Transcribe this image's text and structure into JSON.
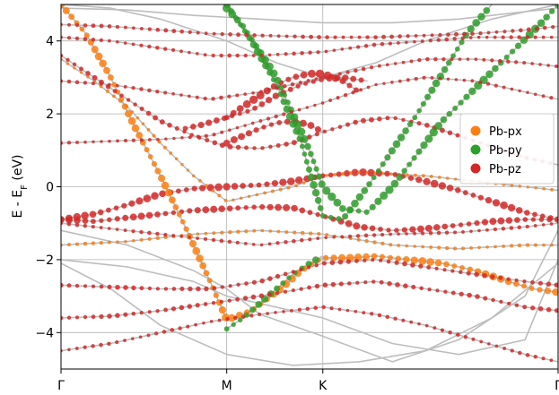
{
  "chart_data": {
    "type": "scatter",
    "title": "",
    "ylabel": "E - E",
    "ylabel_sub": "F",
    "ylabel_tail": " (eV)",
    "ylim": [
      -5.0,
      5.0
    ],
    "yticks": [
      -4,
      -2,
      0,
      2,
      4
    ],
    "ytick_labels": [
      "−4",
      "−2",
      "0",
      "2",
      "4"
    ],
    "xlim": [
      0,
      3
    ],
    "xticks": [
      0,
      1,
      1.58,
      3
    ],
    "xtick_labels": [
      "Γ",
      "M",
      "K",
      "Γ"
    ],
    "grid": true,
    "legend_position": "center-right",
    "colors": {
      "band": "#bdbdbd",
      "px": "#ff7f0e",
      "py": "#2ca02c",
      "pz": "#d62728"
    },
    "series": [
      {
        "name": "Pb-px",
        "color": "#ff7f0e",
        "orbital": "px"
      },
      {
        "name": "Pb-py",
        "color": "#2ca02c",
        "orbital": "py"
      },
      {
        "name": "Pb-pz",
        "color": "#d62728",
        "orbital": "pz"
      }
    ],
    "bands": [
      {
        "x": [
          0,
          0.2,
          0.4,
          0.6,
          0.8,
          1.0,
          1.2,
          1.4,
          1.58,
          1.8,
          2.0,
          2.2,
          2.4,
          2.6,
          2.8,
          3.0
        ],
        "y": [
          -0.9,
          -0.75,
          -0.5,
          -0.2,
          -0.05,
          0.0,
          0.05,
          0.15,
          0.3,
          0.4,
          0.35,
          0.15,
          -0.1,
          -0.4,
          -0.7,
          -0.9
        ],
        "orbital": "pz",
        "weight": 0.9
      },
      {
        "x": [
          0,
          0.2,
          0.4,
          0.6,
          0.8,
          1.0,
          1.2,
          1.4,
          1.58,
          1.8,
          2.0,
          2.2,
          2.4,
          2.6,
          2.8,
          3.0
        ],
        "y": [
          -0.9,
          -0.95,
          -0.85,
          -0.75,
          -0.65,
          -0.6,
          -0.55,
          -0.58,
          -0.8,
          -1.1,
          -1.2,
          -1.15,
          -1.05,
          -0.95,
          -0.9,
          -0.9
        ],
        "orbital": "pz",
        "weight": 0.8
      },
      {
        "x": [
          0,
          0.15,
          0.3,
          0.45,
          0.6,
          0.75,
          0.9,
          1.0,
          1.15,
          1.3,
          1.45,
          1.58,
          1.75,
          1.9,
          2.1,
          2.3,
          2.5,
          2.7,
          2.85,
          3.0
        ],
        "y": [
          5.0,
          4.2,
          3.0,
          1.6,
          0.3,
          -1.1,
          -2.6,
          -3.65,
          -3.4,
          -2.9,
          -2.3,
          -1.95,
          -1.95,
          -1.9,
          -2.0,
          -2.1,
          -2.3,
          -2.6,
          -2.8,
          -2.9
        ],
        "orbital": "px",
        "weight": 0.9
      },
      {
        "x": [
          0,
          0.2,
          0.4,
          0.6,
          0.8,
          1.0,
          1.2,
          1.4,
          1.58,
          1.8,
          2.0,
          2.2,
          2.4,
          2.6,
          2.8,
          3.0
        ],
        "y": [
          3.5,
          2.9,
          2.2,
          1.2,
          0.3,
          -0.4,
          -0.2,
          0.0,
          0.3,
          0.4,
          0.35,
          0.3,
          0.2,
          0.1,
          0.0,
          -0.1
        ],
        "orbital": "px",
        "weight": 0.2
      },
      {
        "x": [
          0,
          0.2,
          0.4,
          0.6,
          0.8,
          1.0,
          1.2,
          1.4,
          1.58,
          1.8,
          2.0,
          2.2,
          2.4,
          2.6,
          2.8,
          3.0
        ],
        "y": [
          3.6,
          3.0,
          2.4,
          1.8,
          1.4,
          1.1,
          1.05,
          1.2,
          1.5,
          1.8,
          1.9,
          1.7,
          1.4,
          1.1,
          0.8,
          0.6
        ],
        "orbital": "pz",
        "weight": 0.5
      },
      {
        "x": [
          1.0,
          1.1,
          1.2,
          1.3,
          1.4,
          1.5,
          1.58,
          1.7,
          1.8
        ],
        "y": [
          1.9,
          2.2,
          2.5,
          2.8,
          3.0,
          3.1,
          3.1,
          2.9,
          2.6
        ],
        "orbital": "pz",
        "weight": 1.0
      },
      {
        "x": [
          0.75,
          0.85,
          1.0,
          1.15,
          1.3,
          1.45,
          1.58,
          1.7,
          1.85
        ],
        "y": [
          1.6,
          1.7,
          1.9,
          2.1,
          2.5,
          2.8,
          2.95,
          3.0,
          2.9
        ],
        "orbital": "pz",
        "weight": 0.7
      },
      {
        "x": [
          1.0,
          1.1,
          1.2,
          1.3,
          1.4,
          1.5,
          1.58
        ],
        "y": [
          1.2,
          1.4,
          1.6,
          1.75,
          1.8,
          1.7,
          1.5
        ],
        "orbital": "pz",
        "weight": 0.8
      },
      {
        "x": [
          1.0,
          1.1,
          1.2,
          1.3,
          1.4,
          1.5,
          1.58,
          1.7,
          1.85,
          2.0,
          2.15,
          2.3,
          2.5,
          2.7,
          2.9,
          3.0
        ],
        "y": [
          4.9,
          4.4,
          3.7,
          3.0,
          2.0,
          1.0,
          0.0,
          -0.6,
          -0.7,
          0.0,
          0.9,
          1.8,
          2.7,
          3.6,
          4.5,
          5.0
        ],
        "orbital": "py",
        "weight": 1.0
      },
      {
        "x": [
          1.0,
          1.15,
          1.3,
          1.45,
          1.58,
          1.7,
          1.85,
          2.0,
          2.15,
          2.3,
          2.45,
          2.6
        ],
        "y": [
          5.0,
          4.0,
          2.8,
          1.2,
          -0.8,
          -0.9,
          0.0,
          1.0,
          2.0,
          3.1,
          4.2,
          5.0
        ],
        "orbital": "py",
        "weight": 0.9
      },
      {
        "x": [
          1.0,
          1.1,
          1.2,
          1.3,
          1.4,
          1.5,
          1.58
        ],
        "y": [
          -3.9,
          -3.6,
          -3.2,
          -2.8,
          -2.4,
          -2.1,
          -1.9
        ],
        "orbital": "py",
        "weight": 0.8
      },
      {
        "x": [
          0,
          0.3,
          0.6,
          0.9,
          1.2,
          1.58,
          1.9,
          2.2,
          2.5,
          2.8,
          3.0
        ],
        "y": [
          4.45,
          4.4,
          4.3,
          4.2,
          4.15,
          4.1,
          4.1,
          4.15,
          4.2,
          4.3,
          4.4
        ],
        "orbital": "pz",
        "weight": 0.35
      },
      {
        "x": [
          0,
          0.3,
          0.6,
          0.9,
          1.2,
          1.58,
          1.9,
          2.2,
          2.5,
          2.8,
          3.0
        ],
        "y": [
          4.1,
          4.0,
          3.8,
          3.6,
          3.6,
          3.7,
          3.9,
          4.0,
          4.1,
          4.1,
          4.1
        ],
        "orbital": "pz",
        "weight": 0.3
      },
      {
        "x": [
          0,
          0.3,
          0.6,
          0.9,
          1.2,
          1.58,
          1.9,
          2.2,
          2.5,
          2.8,
          3.0
        ],
        "y": [
          2.9,
          2.8,
          2.6,
          2.4,
          2.6,
          3.0,
          3.3,
          3.5,
          3.5,
          3.4,
          3.3
        ],
        "orbital": "pz",
        "weight": 0.3
      },
      {
        "x": [
          0,
          0.3,
          0.6,
          0.9,
          1.2,
          1.58,
          1.9,
          2.2,
          2.5,
          2.8,
          3.0
        ],
        "y": [
          1.2,
          1.25,
          1.3,
          1.4,
          1.8,
          2.3,
          2.8,
          3.0,
          2.9,
          2.6,
          2.4
        ],
        "orbital": "pz",
        "weight": 0.25
      },
      {
        "x": [
          0,
          0.3,
          0.6,
          0.9,
          1.2,
          1.58,
          1.9,
          2.2,
          2.5,
          2.8,
          3.0
        ],
        "y": [
          -2.7,
          -2.75,
          -2.8,
          -2.8,
          -2.6,
          -2.1,
          -2.0,
          -2.2,
          -2.4,
          -2.6,
          -2.7
        ],
        "orbital": "pz",
        "weight": 0.45
      },
      {
        "x": [
          0,
          0.3,
          0.6,
          0.9,
          1.2,
          1.58,
          1.9,
          2.2,
          2.5,
          2.8,
          3.0
        ],
        "y": [
          -3.6,
          -3.55,
          -3.4,
          -3.2,
          -3.0,
          -2.7,
          -2.6,
          -2.8,
          -3.0,
          -3.3,
          -3.4
        ],
        "orbital": "pz",
        "weight": 0.45
      },
      {
        "x": [
          0,
          0.3,
          0.6,
          0.9,
          1.2,
          1.58,
          1.9,
          2.2,
          2.5,
          2.8,
          3.0
        ],
        "y": [
          -4.5,
          -4.3,
          -4.0,
          -3.7,
          -3.5,
          -3.3,
          -3.5,
          -3.8,
          -4.2,
          -4.6,
          -4.8
        ],
        "orbital": "pz",
        "weight": 0.3
      },
      {
        "x": [
          0,
          0.4,
          0.8,
          1.2,
          1.58,
          2.0,
          2.4,
          2.8,
          3.0
        ],
        "y": [
          -1.6,
          -1.5,
          -1.3,
          -1.2,
          -1.3,
          -1.6,
          -1.7,
          -1.6,
          -1.6
        ],
        "orbital": "px",
        "weight": 0.25
      },
      {
        "x": [
          0,
          0.4,
          0.8,
          1.2,
          1.58,
          2.0,
          2.4,
          2.8,
          3.0
        ],
        "y": [
          -1.0,
          -1.2,
          -1.4,
          -1.6,
          -1.4,
          -1.3,
          -1.25,
          -1.1,
          -1.0
        ],
        "orbital": "pz",
        "weight": 0.3
      },
      {
        "x": [
          0,
          0.4,
          0.8,
          1.0,
          1.2,
          1.58,
          2.0,
          2.4,
          2.8,
          3.0
        ],
        "y": [
          -2.0,
          -2.2,
          -2.6,
          -3.0,
          -3.2,
          -3.6,
          -4.3,
          -4.6,
          -4.2,
          -2.0
        ],
        "orbital": "none",
        "weight": 0.0
      },
      {
        "x": [
          0,
          0.4,
          0.8,
          1.0,
          1.2,
          1.58,
          2.0,
          2.4,
          2.8,
          3.0
        ],
        "y": [
          -1.2,
          -1.6,
          -2.3,
          -2.8,
          -3.5,
          -4.1,
          -4.8,
          -4.2,
          -3.0,
          -1.2
        ],
        "orbital": "none",
        "weight": 0.0
      },
      {
        "x": [
          0,
          0.3,
          0.6,
          1.0,
          1.4,
          1.8,
          2.2,
          2.6,
          3.0
        ],
        "y": [
          -2.1,
          -2.8,
          -3.8,
          -4.6,
          -4.9,
          -4.8,
          -4.5,
          -3.6,
          -2.1
        ],
        "orbital": "none",
        "weight": 0.0
      },
      {
        "x": [
          0,
          0.4,
          0.8,
          1.2,
          1.58,
          2.0,
          2.4,
          2.8,
          3.0
        ],
        "y": [
          4.9,
          4.85,
          4.7,
          4.6,
          4.5,
          4.5,
          4.6,
          4.8,
          4.9
        ],
        "orbital": "none",
        "weight": 0.0
      },
      {
        "x": [
          0,
          0.3,
          0.6,
          1.0,
          1.3,
          1.58,
          1.9,
          2.2,
          2.6,
          3.0
        ],
        "y": [
          5.0,
          4.9,
          4.6,
          4.0,
          3.4,
          3.0,
          3.4,
          4.0,
          4.6,
          5.0
        ],
        "orbital": "none",
        "weight": 0.0
      }
    ]
  }
}
